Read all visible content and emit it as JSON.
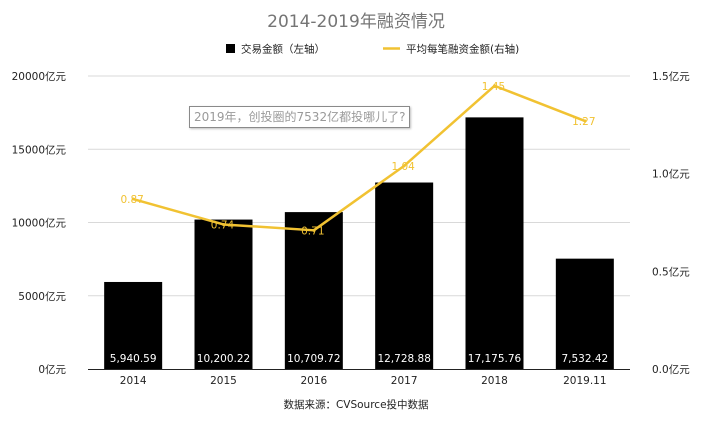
{
  "chart_data": {
    "type": "bar",
    "title": "2014-2019年融资情况",
    "categories": [
      "2014",
      "2015",
      "2016",
      "2017",
      "2018",
      "2019.11"
    ],
    "series": [
      {
        "name": "交易金额（左轴）",
        "type": "bar",
        "axis": "left",
        "color": "#000000",
        "values": [
          5940.59,
          10200.22,
          10709.72,
          12728.88,
          17175.76,
          7532.42
        ],
        "labels": [
          "5,940.59",
          "10,200.22",
          "10,709.72",
          "12,728.88",
          "17,175.76",
          "7,532.42"
        ]
      },
      {
        "name": "平均每笔融资金额(右轴)",
        "type": "line",
        "axis": "right",
        "color": "#f1c232",
        "values": [
          0.87,
          0.74,
          0.71,
          1.04,
          1.45,
          1.27
        ],
        "labels": [
          "0.87",
          "0.74",
          "0.71",
          "1.04",
          "1.45",
          "1.27"
        ]
      }
    ],
    "y_left": {
      "ylim": [
        0,
        20000
      ],
      "ticks": [
        0,
        5000,
        10000,
        15000,
        20000
      ],
      "tick_labels": [
        "0亿元",
        "5000亿元",
        "10000亿元",
        "15000亿元",
        "20000亿元"
      ]
    },
    "y_right": {
      "ylim": [
        0,
        1.5
      ],
      "ticks": [
        0,
        0.5,
        1.0,
        1.5
      ],
      "tick_labels": [
        "0.0亿元",
        "0.5亿元",
        "1.0亿元",
        "1.5亿元"
      ]
    },
    "grid": true,
    "legend": "top-center",
    "source": "数据来源：CVSource投中数据"
  },
  "overlay": {
    "text": "2019年，创投圈的7532亿都投哪儿了?"
  }
}
